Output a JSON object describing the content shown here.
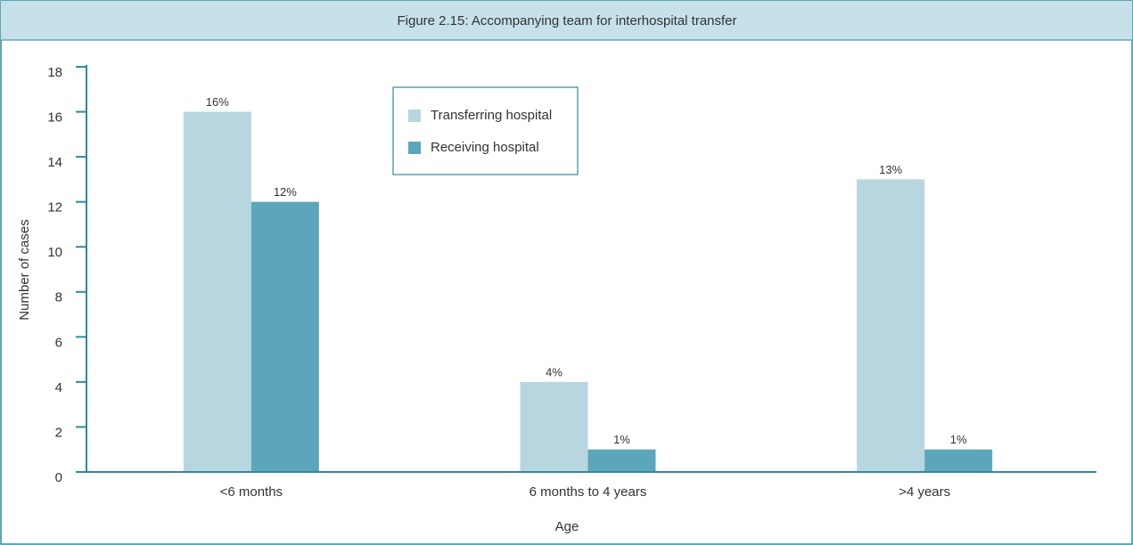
{
  "chart_data": {
    "type": "bar",
    "title": "Figure 2.15: Accompanying team for interhospital transfer",
    "xlabel": "Age",
    "ylabel": "Number of cases",
    "categories": [
      "<6 months",
      "6 months to 4 years",
      ">4 years"
    ],
    "series": [
      {
        "name": "Transferring hospital",
        "color": "#b8d6df",
        "values": [
          16,
          4,
          13
        ],
        "value_labels": [
          "16%",
          "4%",
          "13%"
        ]
      },
      {
        "name": "Receiving hospital",
        "color": "#5ca6bb",
        "values": [
          12,
          1,
          1
        ],
        "value_labels": [
          "12%",
          "1%",
          "1%"
        ]
      }
    ],
    "ylim": [
      0,
      18
    ],
    "yticks": [
      0,
      2,
      4,
      6,
      8,
      10,
      12,
      14,
      16,
      18
    ],
    "legend": "upper left"
  }
}
